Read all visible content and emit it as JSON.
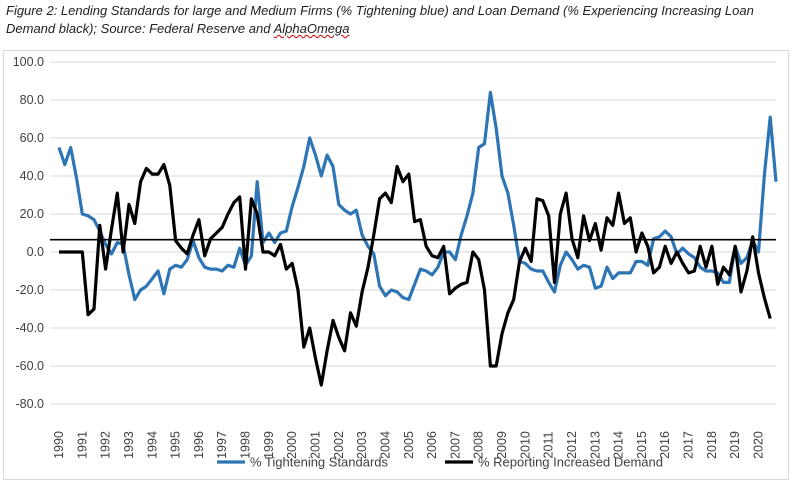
{
  "caption": {
    "part1": "Figure 2: Lending Standards for large and Medium Firms (% Tightening blue) and Loan Demand (% Experiencing Increasing Loan Demand black); Source: Federal Reserve and ",
    "part2": "AlphaOmega"
  },
  "chart_data": {
    "type": "line",
    "title": "",
    "xlabel": "",
    "ylabel": "",
    "ylim": [
      -80,
      100
    ],
    "yticks": [
      "100.0",
      "80.0",
      "60.0",
      "40.0",
      "20.0",
      "0.0",
      "-20.0",
      "-40.0",
      "-60.0",
      "-80.0"
    ],
    "ytick_values": [
      100,
      80,
      60,
      40,
      20,
      0,
      -20,
      -40,
      -60,
      -80
    ],
    "xlim": [
      1990,
      2020.75
    ],
    "xtick_labels": [
      "1990",
      "1991",
      "1992",
      "1993",
      "1994",
      "1995",
      "1996",
      "1997",
      "1998",
      "1999",
      "2000",
      "2001",
      "2002",
      "2003",
      "2004",
      "2005",
      "2006",
      "2007",
      "2008",
      "2009",
      "2010",
      "2011",
      "2012",
      "2013",
      "2014",
      "2015",
      "2016",
      "2017",
      "2018",
      "2019",
      "2020"
    ],
    "grid": true,
    "legend": "bottom",
    "reference_line": {
      "value": 6.5,
      "color": "#000000"
    },
    "colors": {
      "tightening": "#2e75b6",
      "demand": "#000000",
      "grid": "#d9d9d9"
    },
    "series": [
      {
        "name": "% Tightening Standards",
        "color": "#2e75b6",
        "points": [
          [
            1990.0,
            55
          ],
          [
            1990.25,
            46
          ],
          [
            1990.5,
            55
          ],
          [
            1990.75,
            39
          ],
          [
            1991.0,
            20
          ],
          [
            1991.25,
            19
          ],
          [
            1991.5,
            17
          ],
          [
            1991.75,
            11
          ],
          [
            1992.0,
            4
          ],
          [
            1992.25,
            -1
          ],
          [
            1992.5,
            5
          ],
          [
            1992.75,
            4
          ],
          [
            1993.0,
            -12
          ],
          [
            1993.25,
            -25
          ],
          [
            1993.5,
            -20
          ],
          [
            1993.75,
            -18
          ],
          [
            1994.0,
            -14
          ],
          [
            1994.25,
            -10
          ],
          [
            1994.5,
            -22
          ],
          [
            1994.75,
            -9
          ],
          [
            1995.0,
            -7
          ],
          [
            1995.25,
            -8
          ],
          [
            1995.5,
            -4
          ],
          [
            1995.75,
            6
          ],
          [
            1996.0,
            -3
          ],
          [
            1996.25,
            -8
          ],
          [
            1996.5,
            -9
          ],
          [
            1996.75,
            -9
          ],
          [
            1997.0,
            -10
          ],
          [
            1997.25,
            -7
          ],
          [
            1997.5,
            -8
          ],
          [
            1997.75,
            2
          ],
          [
            1998.0,
            -7
          ],
          [
            1998.25,
            -2
          ],
          [
            1998.5,
            37
          ],
          [
            1998.75,
            5
          ],
          [
            1999.0,
            10
          ],
          [
            1999.25,
            5
          ],
          [
            1999.5,
            10
          ],
          [
            1999.75,
            11
          ],
          [
            2000.0,
            24
          ],
          [
            2000.25,
            34
          ],
          [
            2000.5,
            45
          ],
          [
            2000.75,
            60
          ],
          [
            2001.0,
            51
          ],
          [
            2001.25,
            40
          ],
          [
            2001.5,
            51
          ],
          [
            2001.75,
            45
          ],
          [
            2002.0,
            25
          ],
          [
            2002.25,
            22
          ],
          [
            2002.5,
            20
          ],
          [
            2002.75,
            22
          ],
          [
            2003.0,
            9
          ],
          [
            2003.25,
            3
          ],
          [
            2003.5,
            -1
          ],
          [
            2003.75,
            -18
          ],
          [
            2004.0,
            -23
          ],
          [
            2004.25,
            -20
          ],
          [
            2004.5,
            -21
          ],
          [
            2004.75,
            -24
          ],
          [
            2005.0,
            -25
          ],
          [
            2005.25,
            -17
          ],
          [
            2005.5,
            -9
          ],
          [
            2005.75,
            -10
          ],
          [
            2006.0,
            -12
          ],
          [
            2006.25,
            -8
          ],
          [
            2006.5,
            0
          ],
          [
            2006.75,
            0
          ],
          [
            2007.0,
            -4
          ],
          [
            2007.25,
            9
          ],
          [
            2007.5,
            19
          ],
          [
            2007.75,
            31
          ],
          [
            2008.0,
            55
          ],
          [
            2008.25,
            57
          ],
          [
            2008.5,
            84
          ],
          [
            2008.75,
            65
          ],
          [
            2009.0,
            40
          ],
          [
            2009.25,
            31
          ],
          [
            2009.5,
            14
          ],
          [
            2009.75,
            -5
          ],
          [
            2010.0,
            -6
          ],
          [
            2010.25,
            -9
          ],
          [
            2010.5,
            -10
          ],
          [
            2010.75,
            -10
          ],
          [
            2011.0,
            -16
          ],
          [
            2011.25,
            -21
          ],
          [
            2011.5,
            -7
          ],
          [
            2011.75,
            0
          ],
          [
            2012.0,
            -4
          ],
          [
            2012.25,
            -9
          ],
          [
            2012.5,
            -7
          ],
          [
            2012.75,
            -8
          ],
          [
            2013.0,
            -19
          ],
          [
            2013.25,
            -18
          ],
          [
            2013.5,
            -8
          ],
          [
            2013.75,
            -14
          ],
          [
            2014.0,
            -11
          ],
          [
            2014.25,
            -11
          ],
          [
            2014.5,
            -11
          ],
          [
            2014.75,
            -5
          ],
          [
            2015.0,
            -5
          ],
          [
            2015.25,
            -7
          ],
          [
            2015.5,
            7
          ],
          [
            2015.75,
            8
          ],
          [
            2016.0,
            11
          ],
          [
            2016.25,
            8
          ],
          [
            2016.5,
            -1
          ],
          [
            2016.75,
            2
          ],
          [
            2017.0,
            -1
          ],
          [
            2017.25,
            -3
          ],
          [
            2017.5,
            -8
          ],
          [
            2017.75,
            -10
          ],
          [
            2018.0,
            -10
          ],
          [
            2018.25,
            -11
          ],
          [
            2018.5,
            -16
          ],
          [
            2018.75,
            -16
          ],
          [
            2019.0,
            3
          ],
          [
            2019.25,
            -6
          ],
          [
            2019.5,
            -3
          ],
          [
            2019.75,
            6
          ],
          [
            2020.0,
            0
          ],
          [
            2020.25,
            40
          ],
          [
            2020.5,
            71
          ],
          [
            2020.75,
            37
          ]
        ]
      },
      {
        "name": "% Reporting Increased Demand",
        "color": "#000000",
        "points": [
          [
            1990.0,
            0
          ],
          [
            1990.25,
            0
          ],
          [
            1990.5,
            0
          ],
          [
            1990.75,
            0
          ],
          [
            1991.0,
            0
          ],
          [
            1991.25,
            -33
          ],
          [
            1991.5,
            -30
          ],
          [
            1991.75,
            14
          ],
          [
            1992.0,
            -9
          ],
          [
            1992.25,
            12
          ],
          [
            1992.5,
            31
          ],
          [
            1992.75,
            0
          ],
          [
            1993.0,
            25
          ],
          [
            1993.25,
            15
          ],
          [
            1993.5,
            37
          ],
          [
            1993.75,
            44
          ],
          [
            1994.0,
            41
          ],
          [
            1994.25,
            41
          ],
          [
            1994.5,
            46
          ],
          [
            1994.75,
            35
          ],
          [
            1995.0,
            6
          ],
          [
            1995.25,
            2
          ],
          [
            1995.5,
            -1
          ],
          [
            1995.75,
            9
          ],
          [
            1996.0,
            17
          ],
          [
            1996.25,
            -2
          ],
          [
            1996.5,
            7
          ],
          [
            1996.75,
            10
          ],
          [
            1997.0,
            13
          ],
          [
            1997.25,
            20
          ],
          [
            1997.5,
            26
          ],
          [
            1997.75,
            29
          ],
          [
            1998.0,
            -9
          ],
          [
            1998.25,
            28
          ],
          [
            1998.5,
            20
          ],
          [
            1998.75,
            0
          ],
          [
            1999.0,
            0
          ],
          [
            1999.25,
            -2
          ],
          [
            1999.5,
            4
          ],
          [
            1999.75,
            -9
          ],
          [
            2000.0,
            -6
          ],
          [
            2000.25,
            -20
          ],
          [
            2000.5,
            -50
          ],
          [
            2000.75,
            -40
          ],
          [
            2001.0,
            -56
          ],
          [
            2001.25,
            -70
          ],
          [
            2001.5,
            -52
          ],
          [
            2001.75,
            -36
          ],
          [
            2002.0,
            -45
          ],
          [
            2002.25,
            -52
          ],
          [
            2002.5,
            -32
          ],
          [
            2002.75,
            -39
          ],
          [
            2003.0,
            -21
          ],
          [
            2003.25,
            -8
          ],
          [
            2003.5,
            9
          ],
          [
            2003.75,
            28
          ],
          [
            2004.0,
            31
          ],
          [
            2004.25,
            26
          ],
          [
            2004.5,
            45
          ],
          [
            2004.75,
            37
          ],
          [
            2005.0,
            41
          ],
          [
            2005.25,
            16
          ],
          [
            2005.5,
            17
          ],
          [
            2005.75,
            3
          ],
          [
            2006.0,
            -2
          ],
          [
            2006.25,
            -3
          ],
          [
            2006.5,
            3
          ],
          [
            2006.75,
            -22
          ],
          [
            2007.0,
            -19
          ],
          [
            2007.25,
            -17
          ],
          [
            2007.5,
            -16
          ],
          [
            2007.75,
            0
          ],
          [
            2008.0,
            -4
          ],
          [
            2008.25,
            -20
          ],
          [
            2008.5,
            -60
          ],
          [
            2008.75,
            -60
          ],
          [
            2009.0,
            -43
          ],
          [
            2009.25,
            -32
          ],
          [
            2009.5,
            -25
          ],
          [
            2009.75,
            -5
          ],
          [
            2010.0,
            2
          ],
          [
            2010.25,
            -5
          ],
          [
            2010.5,
            28
          ],
          [
            2010.75,
            27
          ],
          [
            2011.0,
            19
          ],
          [
            2011.25,
            -16
          ],
          [
            2011.5,
            20
          ],
          [
            2011.75,
            31
          ],
          [
            2012.0,
            7
          ],
          [
            2012.25,
            -3
          ],
          [
            2012.5,
            19
          ],
          [
            2012.75,
            6
          ],
          [
            2013.0,
            15
          ],
          [
            2013.25,
            1
          ],
          [
            2013.5,
            18
          ],
          [
            2013.75,
            14
          ],
          [
            2014.0,
            31
          ],
          [
            2014.25,
            15
          ],
          [
            2014.5,
            18
          ],
          [
            2014.75,
            0
          ],
          [
            2015.0,
            10
          ],
          [
            2015.25,
            3
          ],
          [
            2015.5,
            -11
          ],
          [
            2015.75,
            -8
          ],
          [
            2016.0,
            3
          ],
          [
            2016.25,
            -6
          ],
          [
            2016.5,
            0
          ],
          [
            2016.75,
            -6
          ],
          [
            2017.0,
            -11
          ],
          [
            2017.25,
            -10
          ],
          [
            2017.5,
            3
          ],
          [
            2017.75,
            -8
          ],
          [
            2018.0,
            3
          ],
          [
            2018.25,
            -17
          ],
          [
            2018.5,
            -8
          ],
          [
            2018.75,
            -12
          ],
          [
            2019.0,
            3
          ],
          [
            2019.25,
            -21
          ],
          [
            2019.5,
            -10
          ],
          [
            2019.75,
            8
          ],
          [
            2020.0,
            -11
          ],
          [
            2020.25,
            -24
          ],
          [
            2020.5,
            -35
          ]
        ]
      }
    ]
  }
}
